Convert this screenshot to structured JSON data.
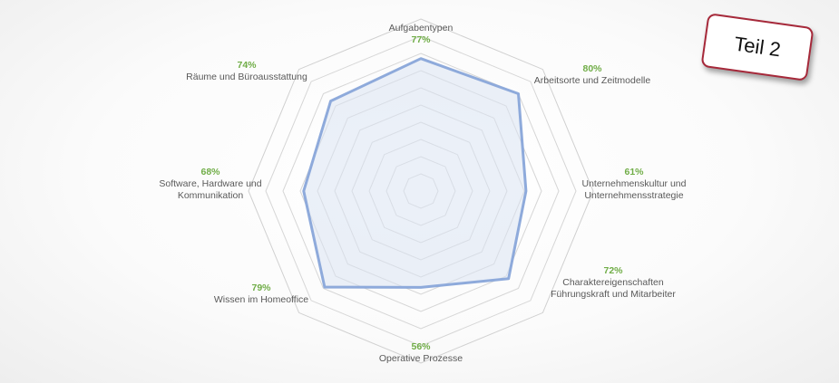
{
  "chart_data": {
    "type": "radar",
    "categories": [
      [
        "Aufgabentypen"
      ],
      [
        "Arbeitsorte und Zeitmodelle"
      ],
      [
        "Unternehmenskultur und",
        "Unternehmensstrategie"
      ],
      [
        "Charaktereigenschaften",
        "Führungskraft und Mitarbeiter"
      ],
      [
        "Operative Prozesse"
      ],
      [
        "Wissen im Homeoffice"
      ],
      [
        "Software, Hardware und",
        "Kommunikation"
      ],
      [
        "Räume und Büroausstattung"
      ]
    ],
    "values": [
      77,
      80,
      61,
      72,
      56,
      79,
      68,
      74
    ],
    "value_labels": [
      "77%",
      "80%",
      "61%",
      "72%",
      "56%",
      "79%",
      "68%",
      "74%"
    ],
    "rmax": 100,
    "grid_levels": 10,
    "series_color": "#8eaadb",
    "fill_color": "#dae3f3",
    "label_color": "#595959",
    "value_color": "#70ad47"
  },
  "badge": {
    "text": "Teil 2",
    "border_color": "#a6293a"
  }
}
